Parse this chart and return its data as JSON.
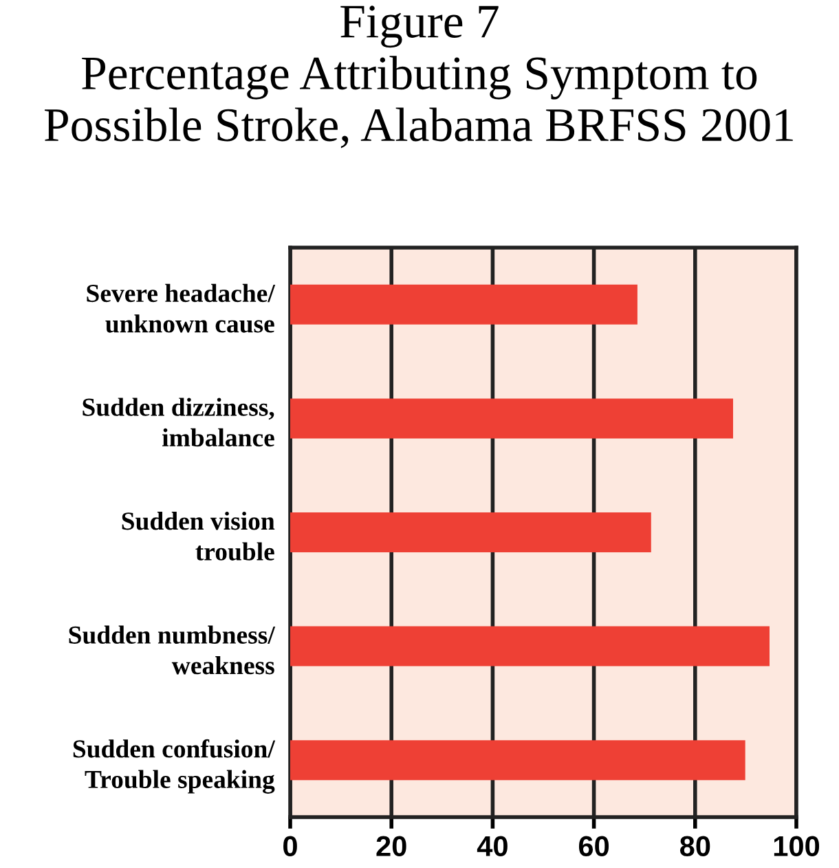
{
  "chart_data": {
    "type": "bar",
    "orientation": "horizontal",
    "title": "Figure 7\nPercentage Attributing Symptom to\nPossible Stroke, Alabama BRFSS 2001",
    "categories": [
      "Severe headache/\nunknown cause",
      "Sudden dizziness,\nimbalance",
      "Sudden vision\ntrouble",
      "Sudden numbness/\nweakness",
      "Sudden confusion/\nTrouble speaking"
    ],
    "values": [
      68.6,
      87.5,
      71.3,
      94.7,
      89.9
    ],
    "color": "#ee4035",
    "xlim": [
      0,
      100
    ],
    "xticks": [
      0,
      20,
      40,
      60,
      80,
      100
    ],
    "grid": "x"
  }
}
